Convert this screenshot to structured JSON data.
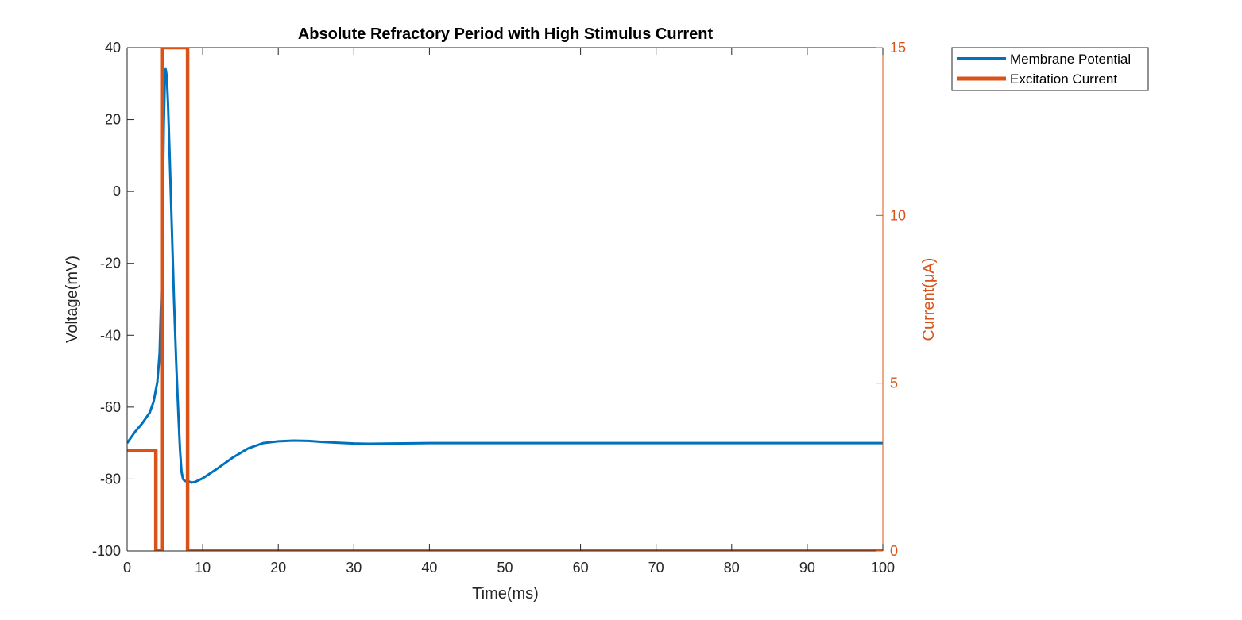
{
  "chart_data": {
    "type": "line",
    "title": "Absolute Refractory Period with High Stimulus Current",
    "xlabel": "Time(ms)",
    "ylabel_left": "Voltage(mV)",
    "ylabel_right": "Current(μA)",
    "xlim": [
      0,
      100
    ],
    "ylim_left": [
      -100,
      40
    ],
    "ylim_right": [
      0,
      15
    ],
    "xticks": [
      0,
      10,
      20,
      30,
      40,
      50,
      60,
      70,
      80,
      90,
      100
    ],
    "yticks_left": [
      -100,
      -80,
      -60,
      -40,
      -20,
      0,
      20,
      40
    ],
    "yticks_right": [
      0,
      5,
      10,
      15
    ],
    "xtick_labels": [
      "0",
      "10",
      "20",
      "30",
      "40",
      "50",
      "60",
      "70",
      "80",
      "90",
      "100"
    ],
    "ytick_labels_left": [
      "-100",
      "-80",
      "-60",
      "-40",
      "-20",
      "0",
      "20",
      "40"
    ],
    "ytick_labels_right": [
      "0",
      "5",
      "10",
      "15"
    ],
    "grid": false,
    "legend_position": "top-right outside",
    "series": [
      {
        "name": "Membrane Potential",
        "axis": "left",
        "color": "#0072BD",
        "x": [
          0,
          1,
          2,
          3,
          3.5,
          4,
          4.3,
          4.5,
          4.7,
          4.85,
          5,
          5.1,
          5.25,
          5.4,
          5.6,
          5.8,
          6,
          6.2,
          6.5,
          6.8,
          7,
          7.2,
          7.4,
          7.6,
          7.8,
          8,
          8.5,
          9,
          10,
          12,
          14,
          16,
          18,
          20,
          22,
          24,
          26,
          28,
          30,
          32,
          35,
          40,
          45,
          50,
          60,
          70,
          80,
          90,
          100
        ],
        "y": [
          -70,
          -67,
          -64.5,
          -61.5,
          -58.5,
          -53,
          -45,
          -30,
          -5,
          18,
          32,
          34,
          32,
          25,
          12,
          -2,
          -16,
          -30,
          -48,
          -63,
          -72,
          -78,
          -80,
          -80.5,
          -80.6,
          -80.5,
          -81,
          -80.8,
          -79.8,
          -77,
          -74,
          -71.5,
          -70,
          -69.5,
          -69.3,
          -69.4,
          -69.7,
          -69.9,
          -70.1,
          -70.2,
          -70.1,
          -70,
          -70,
          -70,
          -70,
          -70,
          -70,
          -70,
          -70
        ]
      },
      {
        "name": "Excitation Current",
        "axis": "right",
        "color": "#D95319",
        "x": [
          0,
          3.8,
          3.8,
          4.6,
          4.6,
          4.85,
          4.85,
          8,
          8,
          100
        ],
        "y": [
          3,
          3,
          0,
          0,
          15,
          15,
          15,
          15,
          0,
          0
        ]
      }
    ]
  }
}
